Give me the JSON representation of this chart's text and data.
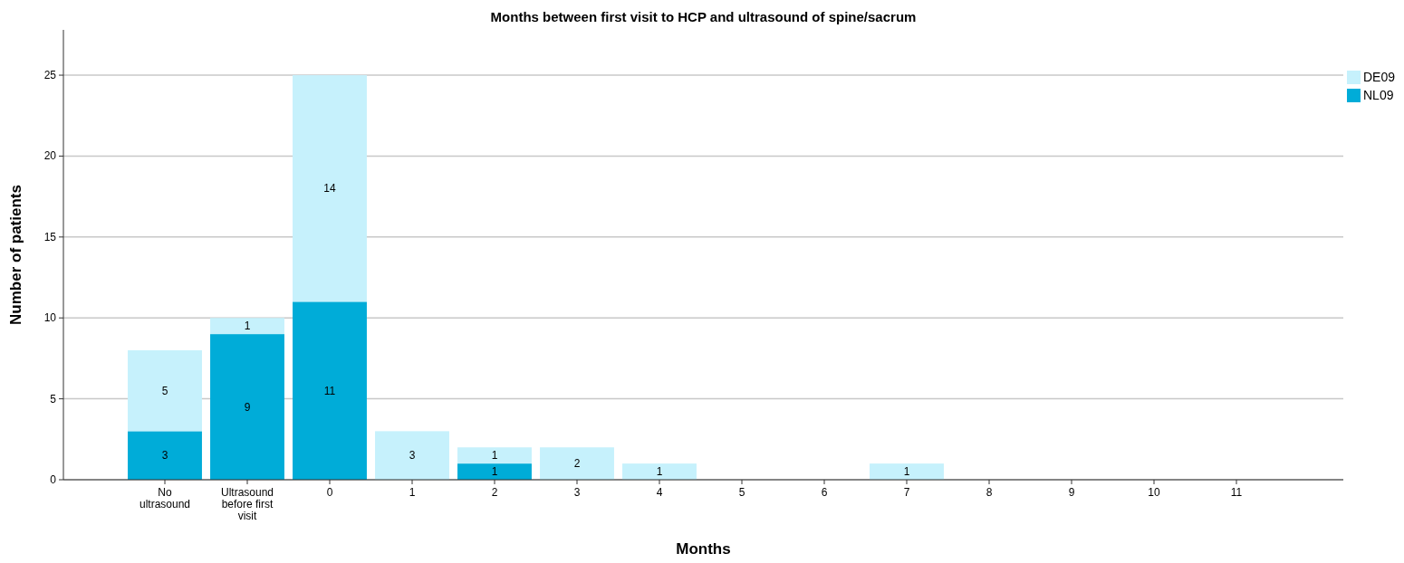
{
  "chart_data": {
    "type": "bar",
    "title": "Months between first visit to HCP and ultrasound of spine/sacrum",
    "xlabel": "Months",
    "ylabel": "Number of patients",
    "categories": [
      "No ultrasound",
      "Ultrasound before first visit",
      "0",
      "1",
      "2",
      "3",
      "4",
      "5",
      "6",
      "7",
      "8",
      "9",
      "10",
      "11"
    ],
    "stacked": true,
    "series": [
      {
        "name": "NL09",
        "color": "#00acd8",
        "values": [
          3,
          9,
          11,
          0,
          1,
          0,
          0,
          0,
          0,
          0,
          0,
          0,
          0,
          0
        ],
        "value_labels": [
          "3",
          "9",
          "11",
          null,
          "1",
          null,
          null,
          null,
          null,
          null,
          null,
          null,
          null,
          null
        ]
      },
      {
        "name": "DE09",
        "color": "#c6f1fc",
        "values": [
          5,
          1,
          14,
          3,
          1,
          2,
          1,
          0,
          0,
          1,
          0,
          0,
          0,
          0
        ],
        "value_labels": [
          "5",
          "1",
          "14",
          "3",
          "1",
          "2",
          "1",
          null,
          null,
          "1",
          null,
          null,
          null,
          null
        ]
      }
    ],
    "ylim": [
      0,
      27.8
    ],
    "yticks": [
      0,
      5,
      10,
      15,
      20,
      25
    ],
    "grid": "y",
    "legend": "top right"
  }
}
